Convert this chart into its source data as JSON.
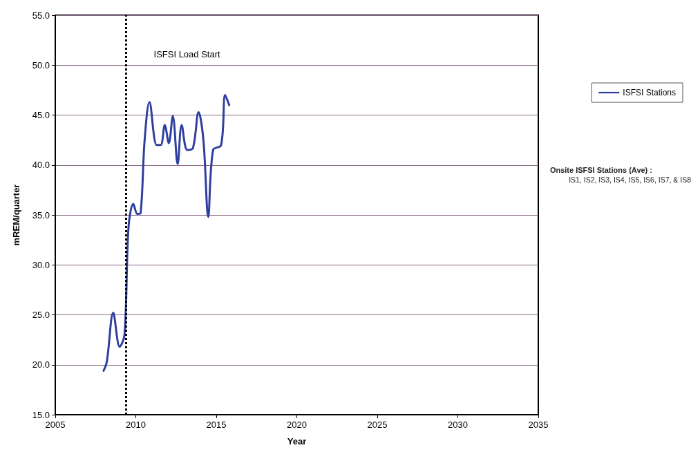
{
  "chart_data": {
    "type": "line",
    "xlabel": "Year",
    "ylabel": "mREM/quarter",
    "x": [
      2008.0,
      2008.2,
      2008.6,
      2009.0,
      2009.3,
      2009.55,
      2009.85,
      2010.1,
      2010.3,
      2010.55,
      2010.85,
      2011.3,
      2011.55,
      2011.8,
      2012.05,
      2012.3,
      2012.6,
      2012.85,
      2013.2,
      2013.55,
      2013.9,
      2014.2,
      2014.5,
      2014.8,
      2015.3,
      2015.55,
      2015.8
    ],
    "series": [
      {
        "name": "ISFSI Stations",
        "color": "#2e3f9e",
        "values": [
          19.4,
          20.3,
          25.2,
          21.8,
          23.0,
          33.8,
          36.1,
          35.1,
          35.2,
          42.5,
          46.3,
          42.0,
          42.0,
          44.0,
          42.2,
          44.9,
          40.1,
          44.0,
          41.5,
          41.7,
          45.3,
          42.5,
          34.8,
          41.5,
          42.0,
          47.0,
          46.0
        ]
      }
    ],
    "xlim": [
      2005,
      2035
    ],
    "xticks": [
      2005,
      2010,
      2015,
      2020,
      2025,
      2030,
      2035
    ],
    "ylim": [
      15,
      55
    ],
    "yticks": [
      {
        "value": 15,
        "label": "15.0"
      },
      {
        "value": 20,
        "label": "20.0"
      },
      {
        "value": 25,
        "label": "25.0"
      },
      {
        "value": 30,
        "label": "30.0"
      },
      {
        "value": 35,
        "label": "35.0"
      },
      {
        "value": 40,
        "label": "40.0"
      },
      {
        "value": 45,
        "label": "45.0"
      },
      {
        "value": 50,
        "label": "50.0"
      },
      {
        "value": 55,
        "label": "55.0"
      }
    ],
    "grid": "y",
    "legend": "right",
    "marker": "none",
    "line_style": "solid",
    "ref_lines": [
      {
        "axis": "x",
        "value": 2009.4,
        "label": "ISFSI Load Start",
        "color": "#000000",
        "line_style": "dotted"
      }
    ],
    "annotations": [
      "Onsite ISFSI Stations (Ave) :",
      "IS1, IS2, IS3, IS4, IS5, IS6, IS7, & IS8"
    ]
  }
}
